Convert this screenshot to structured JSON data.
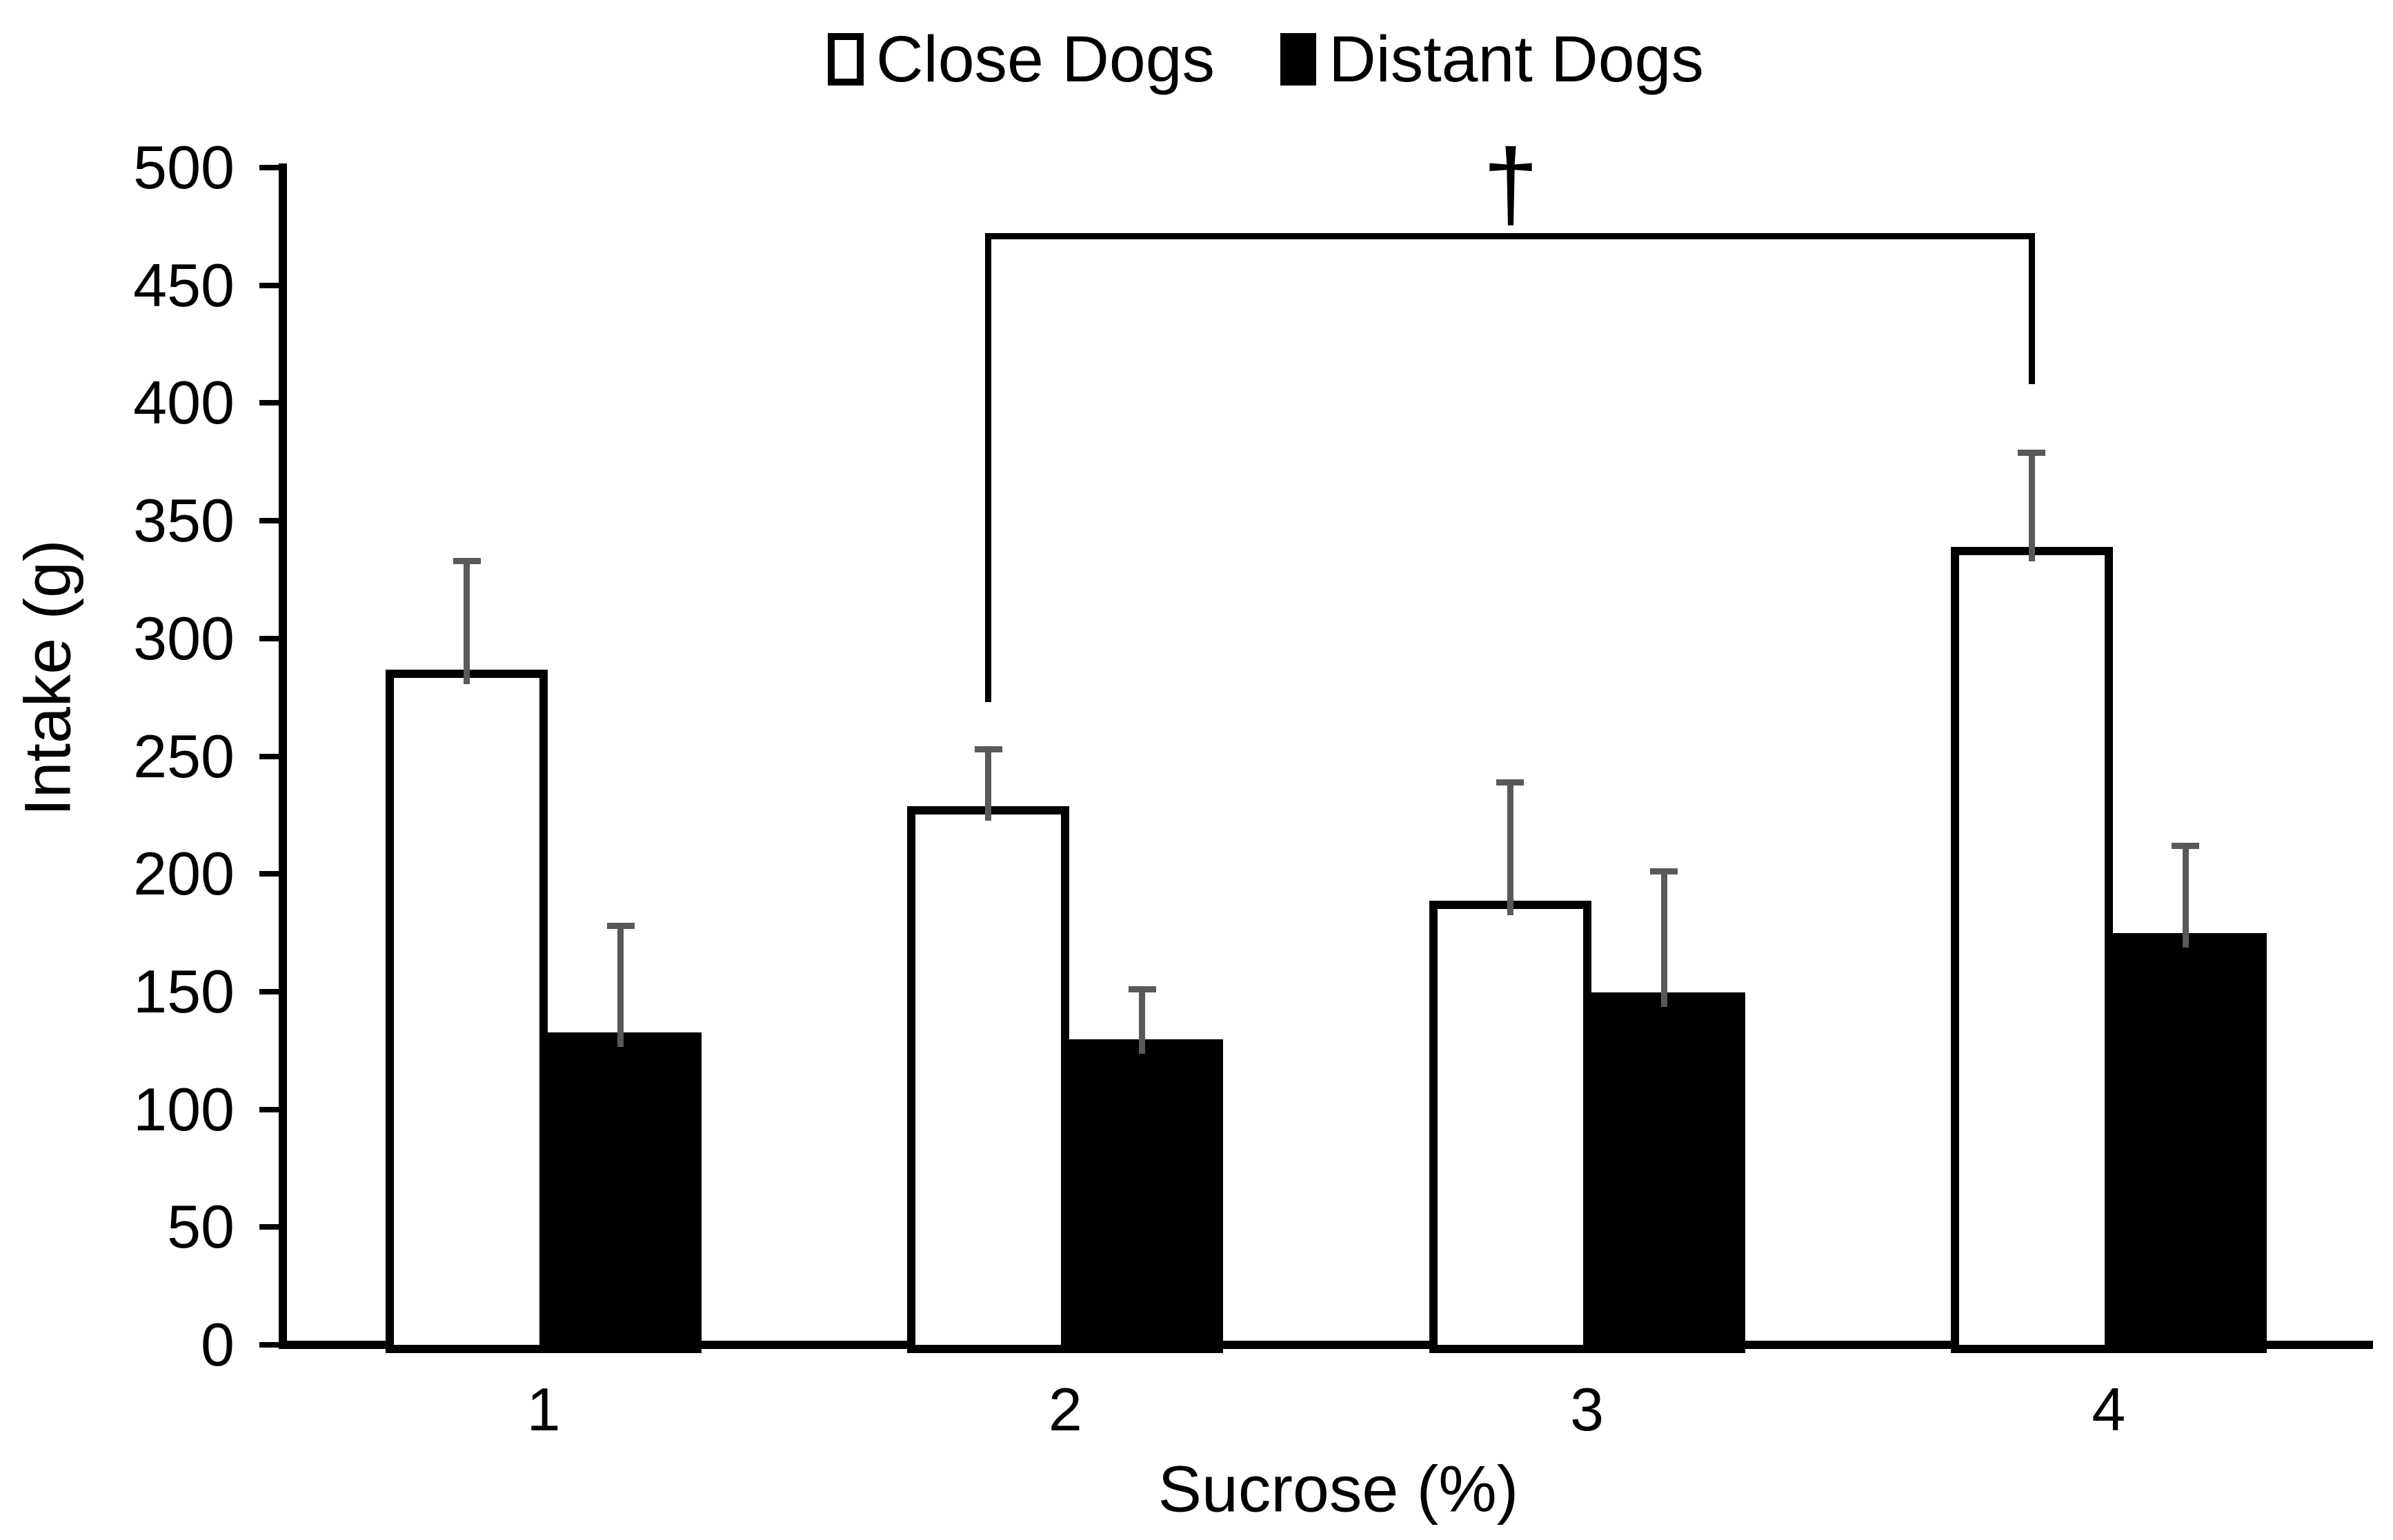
{
  "chart_data": {
    "type": "bar",
    "title": "",
    "categories": [
      "1",
      "2",
      "3",
      "4"
    ],
    "series": [
      {
        "name": "Close Dogs",
        "fill": "#ffffff",
        "border": "#000000",
        "values": [
          285,
          227,
          187,
          337
        ],
        "errors_plus": [
          48,
          26,
          52,
          42
        ]
      },
      {
        "name": "Distant Dogs",
        "fill": "#000000",
        "border": "#000000",
        "values": [
          131,
          128,
          148,
          173
        ],
        "errors_plus": [
          47,
          23,
          53,
          39
        ]
      }
    ],
    "xlabel": "Sucrose (%)",
    "ylabel": "Intake (g)",
    "ylim": [
      0,
      500
    ],
    "yticks": [
      0,
      50,
      100,
      150,
      200,
      250,
      300,
      350,
      400,
      450,
      500
    ],
    "grid": false,
    "legend_position": "top-center",
    "error_bar_color": "#595959",
    "axis_color": "#000000",
    "annotation": {
      "symbol": "†",
      "type": "significance-bracket",
      "connects": [
        "Close Dogs at sucrose 2%",
        "Close Dogs at sucrose 4%"
      ],
      "bracket_top_value": 471,
      "left_drop_to_value": 273,
      "right_drop_to_value": 408
    }
  }
}
